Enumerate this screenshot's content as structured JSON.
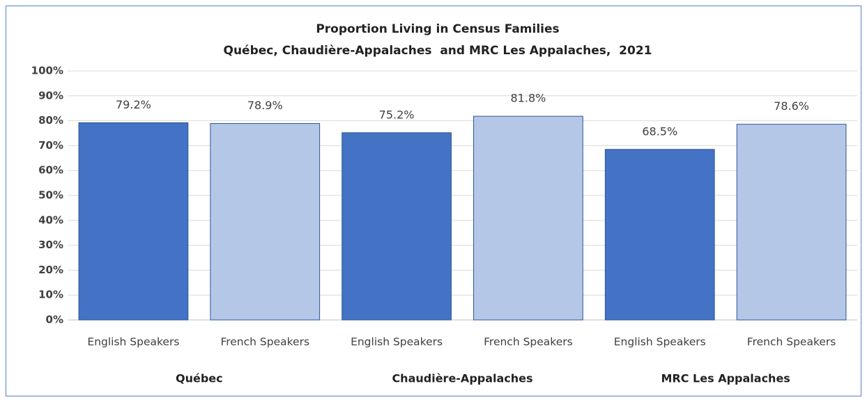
{
  "chart_data": {
    "type": "bar",
    "title": "Proportion Living in Census Families",
    "subtitle": "Québec, Chaudière-Appalaches  and MRC Les Appalaches,  2021",
    "categories": [
      "English Speakers",
      "French Speakers",
      "English Speakers",
      "French Speakers",
      "English Speakers",
      "French Speakers"
    ],
    "groups": [
      "Québec",
      "Chaudière-Appalaches",
      "MRC Les Appalaches"
    ],
    "values": [
      79.2,
      78.9,
      75.2,
      81.8,
      68.5,
      78.6
    ],
    "value_labels": [
      "79.2%",
      "78.9%",
      "75.2%",
      "81.8%",
      "68.5%",
      "78.6%"
    ],
    "colors": [
      "#4472c4",
      "#b4c7e7",
      "#4472c4",
      "#b4c7e7",
      "#4472c4",
      "#b4c7e7"
    ],
    "ylim": [
      0,
      100
    ],
    "yticks": [
      {
        "value": 0,
        "label": "0%"
      },
      {
        "value": 10,
        "label": "10%"
      },
      {
        "value": 20,
        "label": "20%"
      },
      {
        "value": 30,
        "label": "30%"
      },
      {
        "value": 40,
        "label": "40%"
      },
      {
        "value": 50,
        "label": "50%"
      },
      {
        "value": 60,
        "label": "60%"
      },
      {
        "value": 70,
        "label": "70%"
      },
      {
        "value": 80,
        "label": "80%"
      },
      {
        "value": 90,
        "label": "90%"
      },
      {
        "value": 100,
        "label": "100%"
      }
    ],
    "grid": true
  }
}
